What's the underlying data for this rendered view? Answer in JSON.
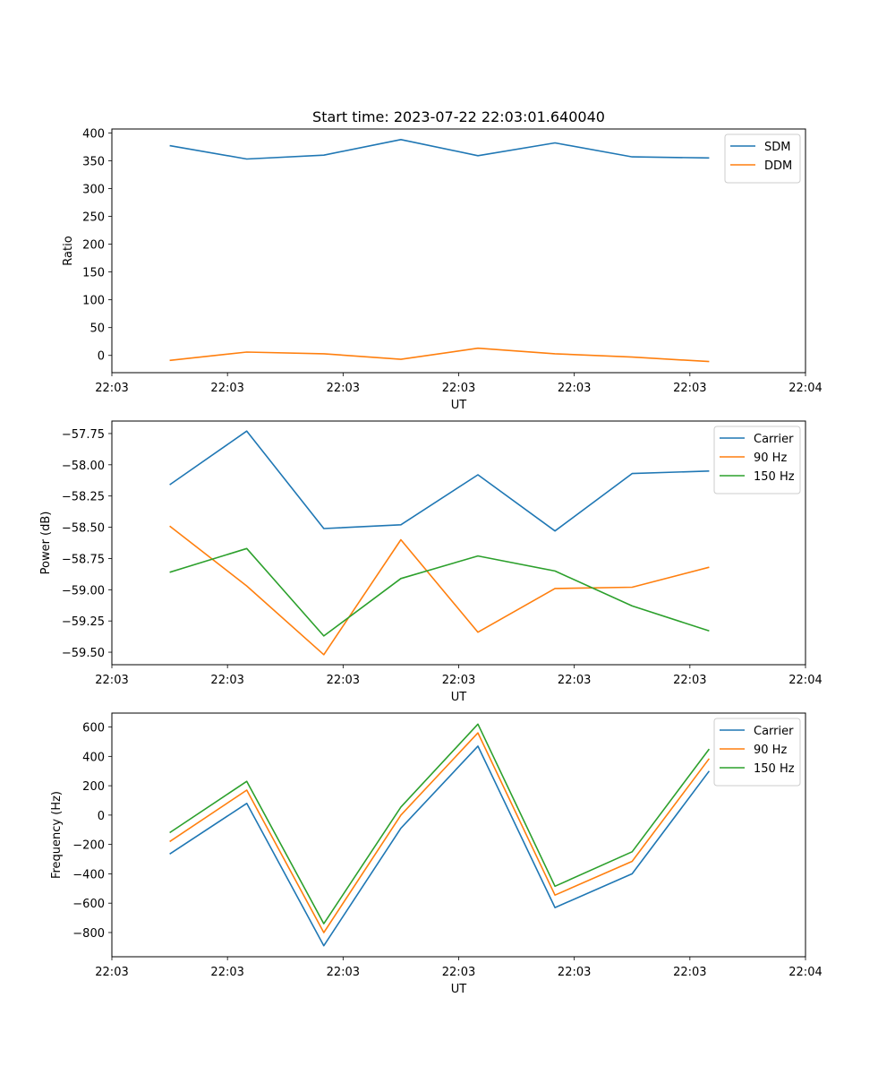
{
  "colors": {
    "blue": "#1f77b4",
    "orange": "#ff7f0e",
    "green": "#2ca02c"
  },
  "chart_data": [
    {
      "type": "line",
      "title": "Start time: 2023-07-22 22:03:01.640040",
      "xlabel": "UT",
      "ylabel": "Ratio",
      "xlim": [
        0,
        9
      ],
      "x": [
        0.75,
        1.75,
        2.75,
        3.75,
        4.75,
        5.75,
        6.75,
        7.75
      ],
      "x_ticks": [
        0,
        1.5,
        3,
        4.5,
        6,
        7.5,
        9
      ],
      "x_tick_labels": [
        "22:03",
        "22:03",
        "22:03",
        "22:03",
        "22:03",
        "22:03",
        "22:04"
      ],
      "ylim": [
        -31,
        407
      ],
      "y_ticks": [
        0,
        50,
        100,
        150,
        200,
        250,
        300,
        350,
        400
      ],
      "y_tick_labels": [
        "0",
        "50",
        "100",
        "150",
        "200",
        "250",
        "300",
        "350",
        "400"
      ],
      "legend_position": "top-right",
      "series": [
        {
          "name": "SDM",
          "color": "#1f77b4",
          "values": [
            377,
            353,
            360,
            388,
            359,
            382,
            357,
            355
          ]
        },
        {
          "name": "DDM",
          "color": "#ff7f0e",
          "values": [
            -9,
            6,
            3,
            -7,
            13,
            3,
            -3,
            -11
          ]
        }
      ]
    },
    {
      "type": "line",
      "title": "",
      "xlabel": "UT",
      "ylabel": "Power (dB)",
      "xlim": [
        0,
        9
      ],
      "x": [
        0.75,
        1.75,
        2.75,
        3.75,
        4.75,
        5.75,
        6.75,
        7.75
      ],
      "x_ticks": [
        0,
        1.5,
        3,
        4.5,
        6,
        7.5,
        9
      ],
      "x_tick_labels": [
        "22:03",
        "22:03",
        "22:03",
        "22:03",
        "22:03",
        "22:03",
        "22:04"
      ],
      "ylim": [
        -59.6,
        -57.65
      ],
      "y_ticks": [
        -57.75,
        -58.0,
        -58.25,
        -58.5,
        -58.75,
        -59.0,
        -59.25,
        -59.5
      ],
      "y_tick_labels": [
        "−57.75",
        "−58.00",
        "−58.25",
        "−58.50",
        "−58.75",
        "−59.00",
        "−59.25",
        "−59.50"
      ],
      "legend_position": "top-right",
      "series": [
        {
          "name": "Carrier",
          "color": "#1f77b4",
          "values": [
            -58.16,
            -57.73,
            -58.51,
            -58.48,
            -58.08,
            -58.53,
            -58.07,
            -58.05
          ]
        },
        {
          "name": "90 Hz",
          "color": "#ff7f0e",
          "values": [
            -58.49,
            -58.97,
            -59.52,
            -58.6,
            -59.34,
            -58.99,
            -58.98,
            -58.82
          ]
        },
        {
          "name": "150 Hz",
          "color": "#2ca02c",
          "values": [
            -58.86,
            -58.67,
            -59.37,
            -58.91,
            -58.73,
            -58.85,
            -59.13,
            -59.33
          ]
        }
      ]
    },
    {
      "type": "line",
      "title": "",
      "xlabel": "UT",
      "ylabel": "Frequency (Hz)",
      "xlim": [
        0,
        9
      ],
      "x": [
        0.75,
        1.75,
        2.75,
        3.75,
        4.75,
        5.75,
        6.75,
        7.75
      ],
      "x_ticks": [
        0,
        1.5,
        3,
        4.5,
        6,
        7.5,
        9
      ],
      "x_tick_labels": [
        "22:03",
        "22:03",
        "22:03",
        "22:03",
        "22:03",
        "22:03",
        "22:04"
      ],
      "ylim": [
        -965,
        695
      ],
      "y_ticks": [
        -800,
        -600,
        -400,
        -200,
        0,
        200,
        400,
        600
      ],
      "y_tick_labels": [
        "−800",
        "−600",
        "−400",
        "−200",
        "0",
        "200",
        "400",
        "600"
      ],
      "legend_position": "top-right",
      "series": [
        {
          "name": "Carrier",
          "color": "#1f77b4",
          "values": [
            -265,
            80,
            -890,
            -90,
            470,
            -630,
            -400,
            300
          ]
        },
        {
          "name": "90 Hz",
          "color": "#ff7f0e",
          "values": [
            -180,
            170,
            -800,
            0,
            560,
            -545,
            -315,
            385
          ]
        },
        {
          "name": "150 Hz",
          "color": "#2ca02c",
          "values": [
            -120,
            230,
            -740,
            55,
            620,
            -485,
            -250,
            450
          ]
        }
      ]
    }
  ]
}
